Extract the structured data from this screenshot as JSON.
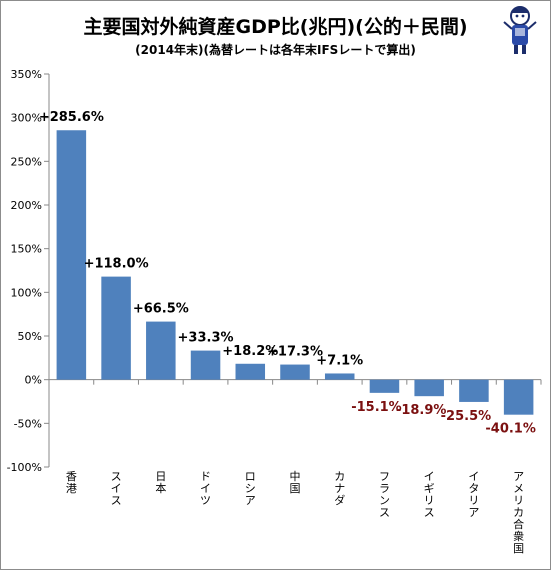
{
  "header": {
    "title": "主要国対外純資産GDP比(兆円)(公的＋民間)",
    "subtitle": "(2014年末)(為替レートは各年末IFSレートで算出)"
  },
  "colors": {
    "bar": "#4f81bd",
    "label_positive": "#000000",
    "label_negative": "#7b1010"
  },
  "chart_data": {
    "type": "bar",
    "title": "主要国対外純資産GDP比(兆円)(公的＋民間)",
    "subtitle": "(2014年末)(為替レートは各年末IFSレートで算出)",
    "xlabel": "",
    "ylabel": "",
    "categories": [
      "香港",
      "スイス",
      "日本",
      "ドイツ",
      "ロシア",
      "中国",
      "カナダ",
      "フランス",
      "イギリス",
      "イタリア",
      "アメリカ合衆国"
    ],
    "values": [
      285.6,
      118.0,
      66.5,
      33.3,
      18.2,
      17.3,
      7.1,
      -15.1,
      -18.9,
      -25.5,
      -40.1
    ],
    "data_labels": [
      "+285.6%",
      "+118.0%",
      "+66.5%",
      "+33.3%",
      "+18.2%",
      "+17.3%",
      "+7.1%",
      "-15.1%",
      "-18.9%",
      "-25.5%",
      "-40.1%"
    ],
    "ylim": [
      -100,
      350
    ],
    "yticks": [
      -100,
      -50,
      0,
      50,
      100,
      150,
      200,
      250,
      300,
      350
    ],
    "ytick_labels": [
      "-100%",
      "-50%",
      "0%",
      "50%",
      "100%",
      "150%",
      "200%",
      "250%",
      "300%",
      "350%"
    ],
    "grid": false,
    "legend": "none"
  }
}
